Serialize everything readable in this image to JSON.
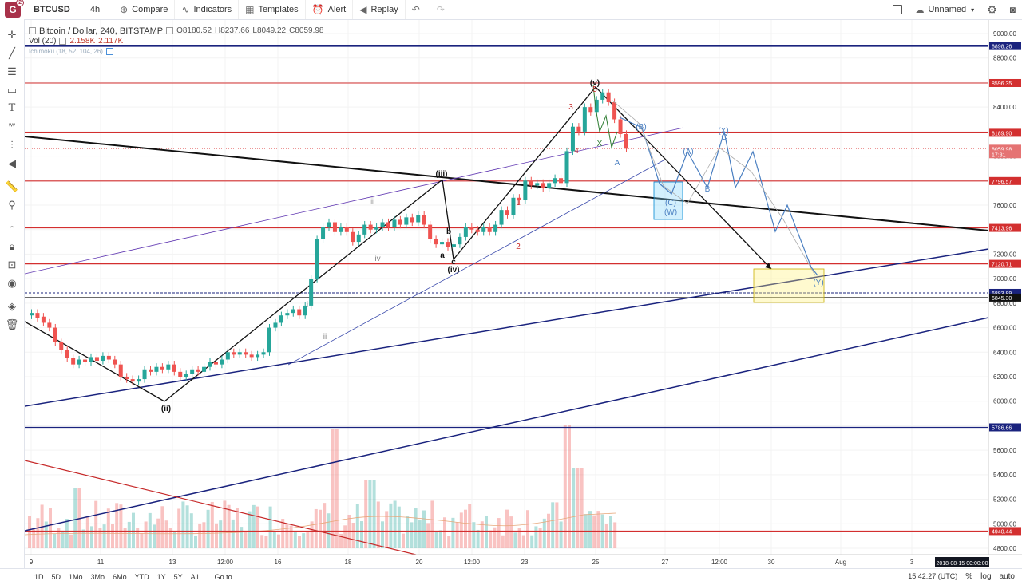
{
  "toolbar": {
    "symbol": "BTCUSD",
    "interval": "4h",
    "compare": "Compare",
    "indicators": "Indicators",
    "templates": "Templates",
    "alert": "Alert",
    "replay": "Replay",
    "layout_name": "Unnamed"
  },
  "legend": {
    "title": "Bitcoin / Dollar, 240, BITSTAMP",
    "open": "O8180.52",
    "high": "H8237.66",
    "low": "L8049.22",
    "close": "C8059.98",
    "vol_label": "Vol (20)",
    "vol_value": "2.158K",
    "vol_ma": "2.117K",
    "ichimoku": "Ichimoku (18, 52, 104, 26)"
  },
  "price_axis": {
    "ticks": [
      "9000.00",
      "8800.00",
      "8600.00",
      "8400.00",
      "8200.00",
      "8000.00",
      "7800.00",
      "7600.00",
      "7400.00",
      "7200.00",
      "7000.00",
      "6800.00",
      "6600.00",
      "6400.00",
      "6200.00",
      "6000.00",
      "5800.00",
      "5600.00",
      "5400.00",
      "5200.00",
      "5000.00",
      "4800.00"
    ],
    "labels": [
      {
        "text": "8898.26",
        "color": "#1a237e"
      },
      {
        "text": "8596.35",
        "color": "#d32f2f"
      },
      {
        "text": "8189.90",
        "color": "#d32f2f"
      },
      {
        "text": "8059.98",
        "color": "#e57373"
      },
      {
        "text": "17:31",
        "color": "#e57373"
      },
      {
        "text": "7796.57",
        "color": "#d32f2f"
      },
      {
        "text": "7413.96",
        "color": "#d32f2f"
      },
      {
        "text": "7120.71",
        "color": "#d32f2f"
      },
      {
        "text": "6883.89",
        "color": "#1a237e"
      },
      {
        "text": "6845.30",
        "color": "#111111"
      },
      {
        "text": "5786.66",
        "color": "#1a237e"
      },
      {
        "text": "4940.44",
        "color": "#d32f2f"
      }
    ]
  },
  "time_axis": {
    "ticks": [
      {
        "text": "9",
        "v": 0
      },
      {
        "text": "11",
        "v": 1
      },
      {
        "text": "13",
        "v": 2
      },
      {
        "text": "12:00",
        "v": 3
      },
      {
        "text": "16",
        "v": 4
      },
      {
        "text": "18",
        "v": 5
      },
      {
        "text": "20",
        "v": 6
      },
      {
        "text": "12:00",
        "v": 7
      },
      {
        "text": "23",
        "v": 8
      },
      {
        "text": "25",
        "v": 9
      },
      {
        "text": "27",
        "v": 10
      },
      {
        "text": "12:00",
        "v": 11
      },
      {
        "text": "30",
        "v": 12
      },
      {
        "text": "Aug",
        "v": 13
      },
      {
        "text": "3",
        "v": 14
      }
    ],
    "cursor_label": "2018-08-15 00:00:00"
  },
  "wave_labels": [
    "(ii)",
    "(iii)",
    "(iv)",
    "(v)",
    "iii",
    "iv",
    "ii",
    "i",
    "a",
    "b",
    "c",
    "(A)",
    "(B)",
    "(C)",
    "(W)",
    "(X)",
    "(Y)",
    "1",
    "2",
    "3",
    "4",
    "5",
    "A",
    "B",
    "C",
    "X"
  ],
  "bottombar": {
    "ranges": [
      "1D",
      "5D",
      "1Mo",
      "3Mo",
      "6Mo",
      "YTD",
      "1Y",
      "5Y",
      "All"
    ],
    "goto": "Go to...",
    "clock": "15:42:27 (UTC)",
    "percent": "%",
    "log": "log",
    "auto": "auto"
  },
  "colors": {
    "bull": "#26a69a",
    "bear": "#ef5350",
    "support_red": "#d32f2f",
    "trend_blue": "#1a237e",
    "projection_blue": "#4a7fc1"
  }
}
